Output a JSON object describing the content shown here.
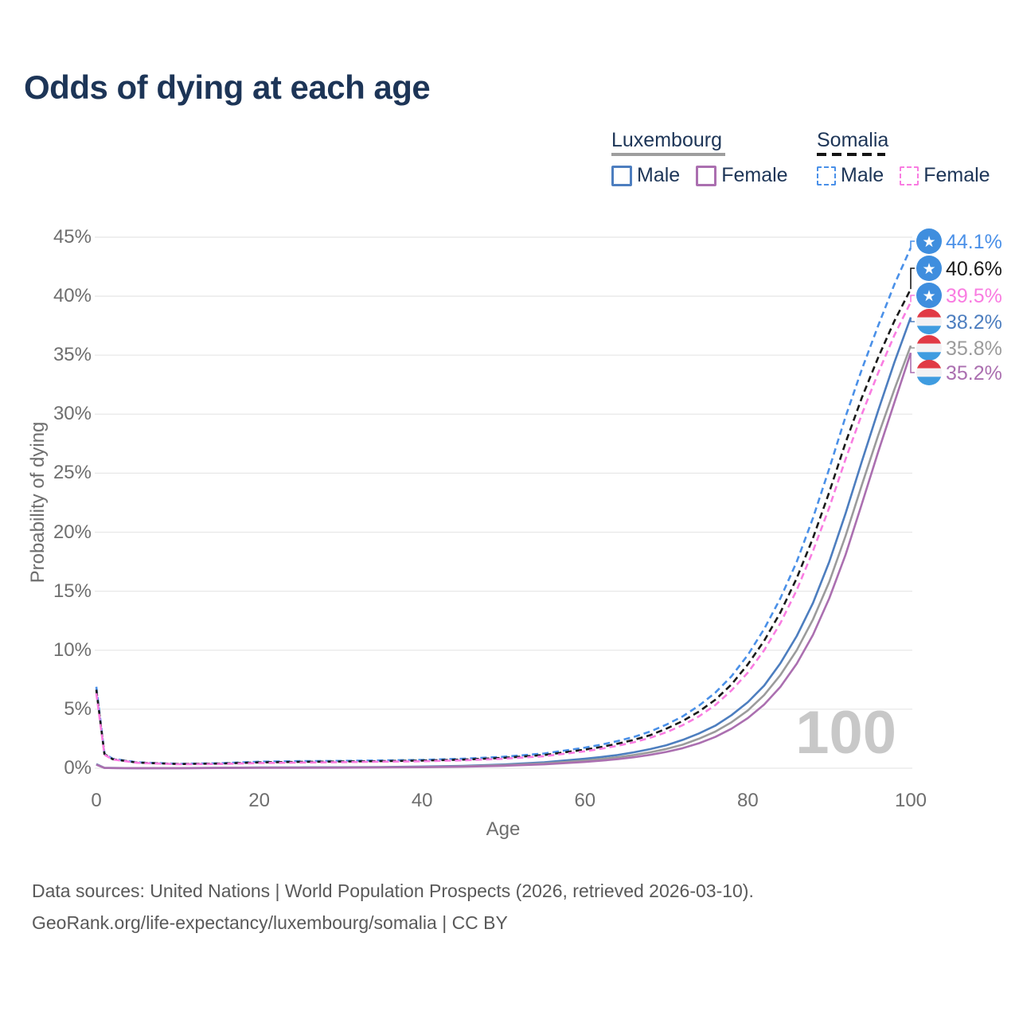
{
  "title": "Odds of dying at each age",
  "watermark_age": "100",
  "legend": {
    "groups": [
      {
        "name": "Luxembourg",
        "line_style": "solid",
        "underline_color": "#9e9e9e",
        "items": [
          {
            "label": "Male",
            "color": "#4d7ebf",
            "dashed": false
          },
          {
            "label": "Female",
            "color": "#ab6fb0",
            "dashed": false
          }
        ]
      },
      {
        "name": "Somalia",
        "line_style": "dashed",
        "underline_color": "#141414",
        "items": [
          {
            "label": "Male",
            "color": "#4a90e8",
            "dashed": true
          },
          {
            "label": "Female",
            "color": "#f97ce1",
            "dashed": true
          }
        ]
      }
    ]
  },
  "axes": {
    "y": {
      "label": "Probability of dying",
      "ticks": [
        {
          "value": 0,
          "label": "0%"
        },
        {
          "value": 5,
          "label": "5%"
        },
        {
          "value": 10,
          "label": "10%"
        },
        {
          "value": 15,
          "label": "15%"
        },
        {
          "value": 20,
          "label": "20%"
        },
        {
          "value": 25,
          "label": "25%"
        },
        {
          "value": 30,
          "label": "30%"
        },
        {
          "value": 35,
          "label": "35%"
        },
        {
          "value": 40,
          "label": "40%"
        },
        {
          "value": 45,
          "label": "45%"
        }
      ]
    },
    "x": {
      "label": "Age",
      "ticks": [
        {
          "value": 0,
          "label": "0"
        },
        {
          "value": 20,
          "label": "20"
        },
        {
          "value": 40,
          "label": "40"
        },
        {
          "value": 60,
          "label": "60"
        },
        {
          "value": 80,
          "label": "80"
        },
        {
          "value": 100,
          "label": "100"
        }
      ]
    }
  },
  "footer": {
    "line1": "Data sources: United Nations | World Population Prospects (2026, retrieved 2026-03-10).",
    "line2": "GeoRank.org/life-expectancy/luxembourg/somalia | CC BY"
  },
  "chart_data": {
    "type": "line",
    "title": "Odds of dying at each age",
    "xlabel": "Age",
    "ylabel": "Probability of dying",
    "x_range": [
      0,
      100
    ],
    "y_range_percent": [
      0,
      45
    ],
    "grid": "horizontal",
    "legend_position": "top-right",
    "ages": [
      0,
      1,
      2,
      5,
      10,
      15,
      20,
      25,
      30,
      35,
      40,
      45,
      50,
      55,
      60,
      62,
      64,
      66,
      68,
      70,
      72,
      74,
      76,
      78,
      80,
      82,
      84,
      86,
      88,
      90,
      92,
      94,
      96,
      98,
      100
    ],
    "series": [
      {
        "name": "Somalia male",
        "country": "Somalia",
        "sex": "Male",
        "flag": "somalia",
        "color": "#4a90e8",
        "dashed": true,
        "end_label": "44.1%",
        "end_value": 44.1,
        "values": [
          6.9,
          1.25,
          0.8,
          0.5,
          0.38,
          0.42,
          0.55,
          0.6,
          0.62,
          0.66,
          0.71,
          0.8,
          0.97,
          1.25,
          1.75,
          2.0,
          2.3,
          2.65,
          3.1,
          3.7,
          4.4,
          5.3,
          6.4,
          7.8,
          9.6,
          11.8,
          14.4,
          17.5,
          21.2,
          25.4,
          29.8,
          33.8,
          37.5,
          41.0,
          44.1
        ]
      },
      {
        "name": "Somalia both sexes",
        "country": "Somalia",
        "sex": "Both",
        "flag": "somalia",
        "color": "#1a1a1a",
        "dashed": true,
        "end_label": "40.6%",
        "end_value": 40.6,
        "values": [
          6.65,
          1.2,
          0.77,
          0.48,
          0.36,
          0.39,
          0.49,
          0.54,
          0.57,
          0.6,
          0.65,
          0.73,
          0.88,
          1.12,
          1.58,
          1.8,
          2.08,
          2.4,
          2.8,
          3.35,
          4.0,
          4.8,
          5.8,
          7.1,
          8.8,
          10.8,
          13.2,
          16.1,
          19.5,
          23.4,
          27.6,
          31.4,
          34.8,
          37.9,
          40.6
        ]
      },
      {
        "name": "Somalia female",
        "country": "Somalia",
        "sex": "Female",
        "flag": "somalia",
        "color": "#f97ce1",
        "dashed": true,
        "end_label": "39.5%",
        "end_value": 39.5,
        "values": [
          6.35,
          1.15,
          0.74,
          0.46,
          0.34,
          0.36,
          0.44,
          0.48,
          0.51,
          0.55,
          0.59,
          0.67,
          0.8,
          1.02,
          1.44,
          1.65,
          1.9,
          2.2,
          2.58,
          3.05,
          3.65,
          4.4,
          5.35,
          6.6,
          8.1,
          10.0,
          12.3,
          15.1,
          18.4,
          22.1,
          26.2,
          30.0,
          33.5,
          36.7,
          39.5
        ]
      },
      {
        "name": "Luxembourg male",
        "country": "Luxembourg",
        "sex": "Male",
        "flag": "luxembourg",
        "color": "#4d7ebf",
        "dashed": false,
        "end_label": "38.2%",
        "end_value": 38.2,
        "values": [
          0.35,
          0.03,
          0.02,
          0.01,
          0.012,
          0.03,
          0.06,
          0.07,
          0.08,
          0.1,
          0.14,
          0.2,
          0.32,
          0.5,
          0.8,
          0.95,
          1.12,
          1.35,
          1.62,
          1.95,
          2.4,
          2.95,
          3.6,
          4.5,
          5.6,
          7.0,
          8.9,
          11.2,
          14.0,
          17.5,
          21.6,
          26.0,
          30.3,
          34.4,
          38.2
        ]
      },
      {
        "name": "Luxembourg both sexes",
        "country": "Luxembourg",
        "sex": "Both",
        "flag": "luxembourg",
        "color": "#9b9b9b",
        "dashed": false,
        "end_label": "35.8%",
        "end_value": 35.8,
        "values": [
          0.32,
          0.027,
          0.018,
          0.009,
          0.01,
          0.025,
          0.047,
          0.055,
          0.065,
          0.082,
          0.11,
          0.16,
          0.26,
          0.41,
          0.65,
          0.78,
          0.93,
          1.12,
          1.35,
          1.63,
          2.0,
          2.5,
          3.1,
          3.9,
          4.9,
          6.2,
          7.9,
          10.0,
          12.6,
          15.8,
          19.7,
          24.0,
          28.2,
          32.1,
          35.8
        ]
      },
      {
        "name": "Luxembourg female",
        "country": "Luxembourg",
        "sex": "Female",
        "flag": "luxembourg",
        "color": "#ab6fb0",
        "dashed": false,
        "end_label": "35.2%",
        "end_value": 35.2,
        "values": [
          0.3,
          0.025,
          0.016,
          0.008,
          0.009,
          0.02,
          0.033,
          0.04,
          0.05,
          0.065,
          0.09,
          0.13,
          0.21,
          0.33,
          0.53,
          0.64,
          0.77,
          0.93,
          1.13,
          1.38,
          1.7,
          2.12,
          2.65,
          3.35,
          4.25,
          5.4,
          6.9,
          8.85,
          11.3,
          14.4,
          18.1,
          22.4,
          26.8,
          31.0,
          35.2
        ]
      }
    ],
    "colors": {
      "somalia_flag_blue": "#3f8ede",
      "luxembourg_flag_red": "#e13a45",
      "luxembourg_flag_blue": "#3f9ce0",
      "gridline": "#e8e8e8",
      "watermark": "#c8c8c8"
    }
  }
}
